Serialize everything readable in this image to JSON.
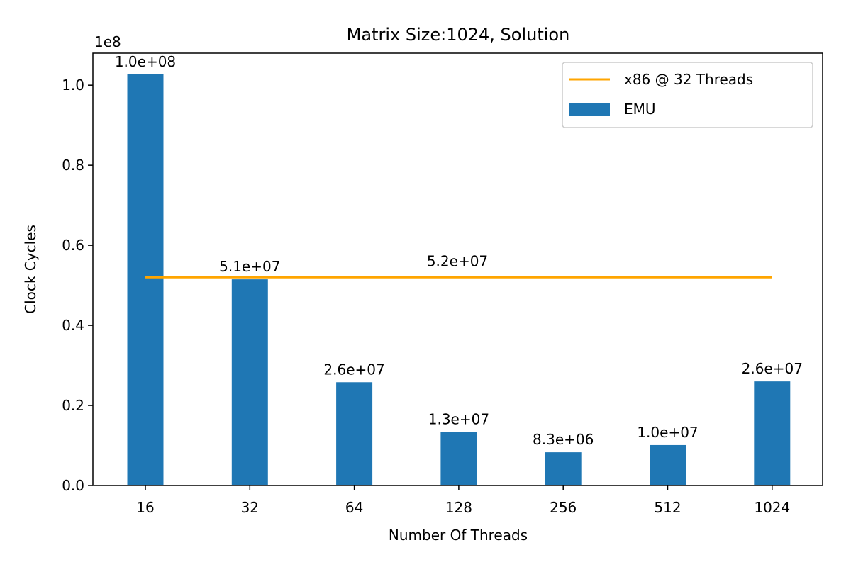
{
  "chart_data": {
    "type": "bar",
    "title": "Matrix Size:1024, Solution",
    "xlabel": "Number Of Threads",
    "ylabel": "Clock Cycles",
    "y_multiplier": "1e8",
    "categories": [
      "16",
      "32",
      "64",
      "128",
      "256",
      "512",
      "1024"
    ],
    "ylim": [
      0,
      1.08
    ],
    "yticks": [
      0.0,
      0.2,
      0.4,
      0.6,
      0.8,
      1.0
    ],
    "ytick_labels": [
      "0.0",
      "0.2",
      "0.4",
      "0.6",
      "0.8",
      "1.0"
    ],
    "series": [
      {
        "name": "EMU",
        "type": "bar",
        "color": "#1f77b4",
        "values": [
          1.027,
          0.515,
          0.258,
          0.134,
          0.083,
          0.101,
          0.26
        ],
        "labels": [
          "1.0e+08",
          "5.1e+07",
          "2.6e+07",
          "1.3e+07",
          "8.3e+06",
          "1.0e+07",
          "2.6e+07"
        ]
      },
      {
        "name": "x86 @ 32 Threads",
        "type": "line",
        "color": "#ffa500",
        "value": 0.52,
        "label": "5.2e+07"
      }
    ],
    "grid": false,
    "legend_position": "top-right"
  }
}
